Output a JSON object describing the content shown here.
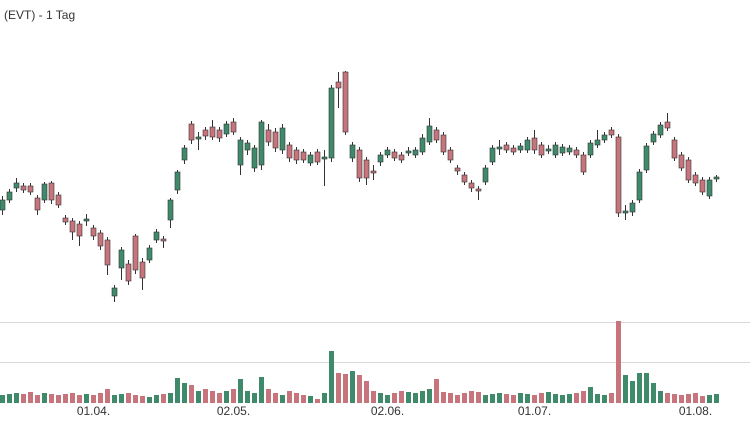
{
  "chart_data": {
    "type": "candlestick",
    "title": "(EVT) - 1 Tag",
    "up_color": "#3f8a6b",
    "down_color": "#c8747d",
    "ylim": [
      0,
      320
    ],
    "volume_ylim": [
      0,
      82
    ],
    "volume_yticks": [
      41,
      81
    ],
    "grid": true,
    "categories": [
      null,
      null,
      null,
      null,
      null,
      null,
      null,
      null,
      null,
      null,
      null,
      null,
      null,
      "01.04.",
      null,
      null,
      null,
      null,
      null,
      null,
      null,
      null,
      null,
      null,
      null,
      null,
      null,
      null,
      null,
      null,
      null,
      null,
      null,
      "02.05.",
      null,
      null,
      null,
      null,
      null,
      null,
      null,
      null,
      null,
      null,
      null,
      null,
      null,
      null,
      null,
      null,
      null,
      null,
      null,
      null,
      null,
      "02.06.",
      null,
      null,
      null,
      null,
      null,
      null,
      null,
      null,
      null,
      null,
      null,
      null,
      null,
      null,
      null,
      null,
      null,
      null,
      null,
      null,
      "01.07.",
      null,
      null,
      null,
      null,
      null,
      null,
      null,
      null,
      null,
      null,
      null,
      null,
      null,
      null,
      null,
      null,
      null,
      null,
      null,
      null,
      null,
      null,
      "01.08.",
      null,
      null,
      null
    ],
    "open": [
      110,
      120,
      132,
      134,
      134,
      122,
      120,
      137,
      125,
      102,
      99,
      96,
      99,
      92,
      87,
      80,
      24,
      52,
      56,
      84,
      58,
      60,
      80,
      81,
      100,
      130,
      160,
      196,
      181,
      190,
      193,
      190,
      186,
      198,
      155,
      170,
      152,
      155,
      190,
      188,
      170,
      175,
      170,
      168,
      157,
      168,
      161,
      162,
      238,
      248,
      162,
      170,
      160,
      149,
      158,
      165,
      168,
      165,
      167,
      165,
      168,
      178,
      190,
      185,
      170,
      152,
      145,
      137,
      131,
      138,
      158,
      171,
      175,
      172,
      170,
      170,
      182,
      175,
      169,
      165,
      167,
      168,
      170,
      165,
      165,
      175,
      180,
      190,
      183,
      107,
      108,
      120,
      150,
      178,
      185,
      198,
      180,
      165,
      160,
      145,
      140,
      124,
      141
    ],
    "high": [
      124,
      131,
      142,
      137,
      137,
      125,
      138,
      139,
      128,
      105,
      102,
      99,
      106,
      95,
      90,
      83,
      35,
      73,
      60,
      86,
      62,
      75,
      91,
      84,
      122,
      150,
      175,
      199,
      188,
      193,
      200,
      193,
      199,
      202,
      183,
      180,
      175,
      200,
      196,
      192,
      196,
      178,
      173,
      171,
      168,
      171,
      170,
      235,
      248,
      249,
      178,
      173,
      163,
      155,
      168,
      173,
      171,
      168,
      173,
      173,
      186,
      202,
      193,
      188,
      173,
      155,
      148,
      140,
      134,
      155,
      175,
      180,
      178,
      175,
      177,
      183,
      190,
      178,
      175,
      178,
      176,
      175,
      173,
      168,
      180,
      190,
      188,
      193,
      186,
      115,
      120,
      151,
      177,
      189,
      198,
      207,
      183,
      168,
      163,
      148,
      143,
      143,
      145
    ],
    "low": [
      105,
      117,
      128,
      127,
      125,
      105,
      117,
      116,
      112,
      95,
      80,
      74,
      94,
      80,
      70,
      45,
      18,
      40,
      35,
      46,
      30,
      57,
      77,
      72,
      92,
      126,
      156,
      176,
      170,
      180,
      180,
      178,
      183,
      185,
      145,
      165,
      148,
      150,
      174,
      168,
      166,
      158,
      156,
      157,
      154,
      155,
      134,
      158,
      212,
      185,
      158,
      138,
      135,
      140,
      154,
      162,
      159,
      157,
      164,
      162,
      165,
      175,
      177,
      165,
      157,
      145,
      135,
      128,
      120,
      135,
      155,
      165,
      167,
      165,
      167,
      167,
      166,
      162,
      166,
      162,
      164,
      165,
      162,
      145,
      162,
      172,
      177,
      182,
      103,
      100,
      104,
      117,
      147,
      175,
      182,
      189,
      159,
      149,
      137,
      134,
      125,
      121,
      138
    ],
    "close": [
      120,
      128,
      137,
      130,
      128,
      110,
      136,
      120,
      115,
      98,
      88,
      84,
      101,
      84,
      74,
      55,
      32,
      70,
      39,
      50,
      42,
      72,
      88,
      79,
      120,
      148,
      172,
      180,
      183,
      184,
      183,
      182,
      196,
      188,
      180,
      177,
      172,
      198,
      178,
      172,
      192,
      162,
      160,
      160,
      165,
      158,
      163,
      232,
      232,
      188,
      175,
      142,
      142,
      147,
      165,
      170,
      162,
      160,
      169,
      170,
      182,
      194,
      180,
      168,
      160,
      149,
      138,
      132,
      129,
      152,
      172,
      173,
      170,
      168,
      174,
      180,
      170,
      165,
      171,
      175,
      173,
      172,
      165,
      148,
      177,
      180,
      185,
      185,
      107,
      109,
      117,
      148,
      174,
      186,
      195,
      192,
      162,
      152,
      140,
      137,
      128,
      140,
      143
    ],
    "volume": [
      8,
      9,
      10,
      9,
      11,
      8,
      10,
      9,
      8,
      9,
      10,
      8,
      9,
      8,
      10,
      14,
      8,
      9,
      10,
      8,
      7,
      6,
      8,
      9,
      10,
      25,
      20,
      18,
      12,
      14,
      12,
      10,
      12,
      14,
      24,
      12,
      10,
      26,
      14,
      10,
      8,
      12,
      10,
      8,
      7,
      4,
      10,
      52,
      30,
      29,
      32,
      28,
      22,
      12,
      10,
      8,
      10,
      12,
      11,
      10,
      12,
      14,
      24,
      11,
      10,
      8,
      10,
      12,
      11,
      8,
      9,
      10,
      9,
      8,
      10,
      9,
      8,
      10,
      11,
      9,
      8,
      9,
      10,
      12,
      16,
      9,
      8,
      10,
      82,
      28,
      22,
      30,
      30,
      20,
      12,
      10,
      9,
      8,
      9,
      10,
      7,
      8,
      9
    ]
  }
}
